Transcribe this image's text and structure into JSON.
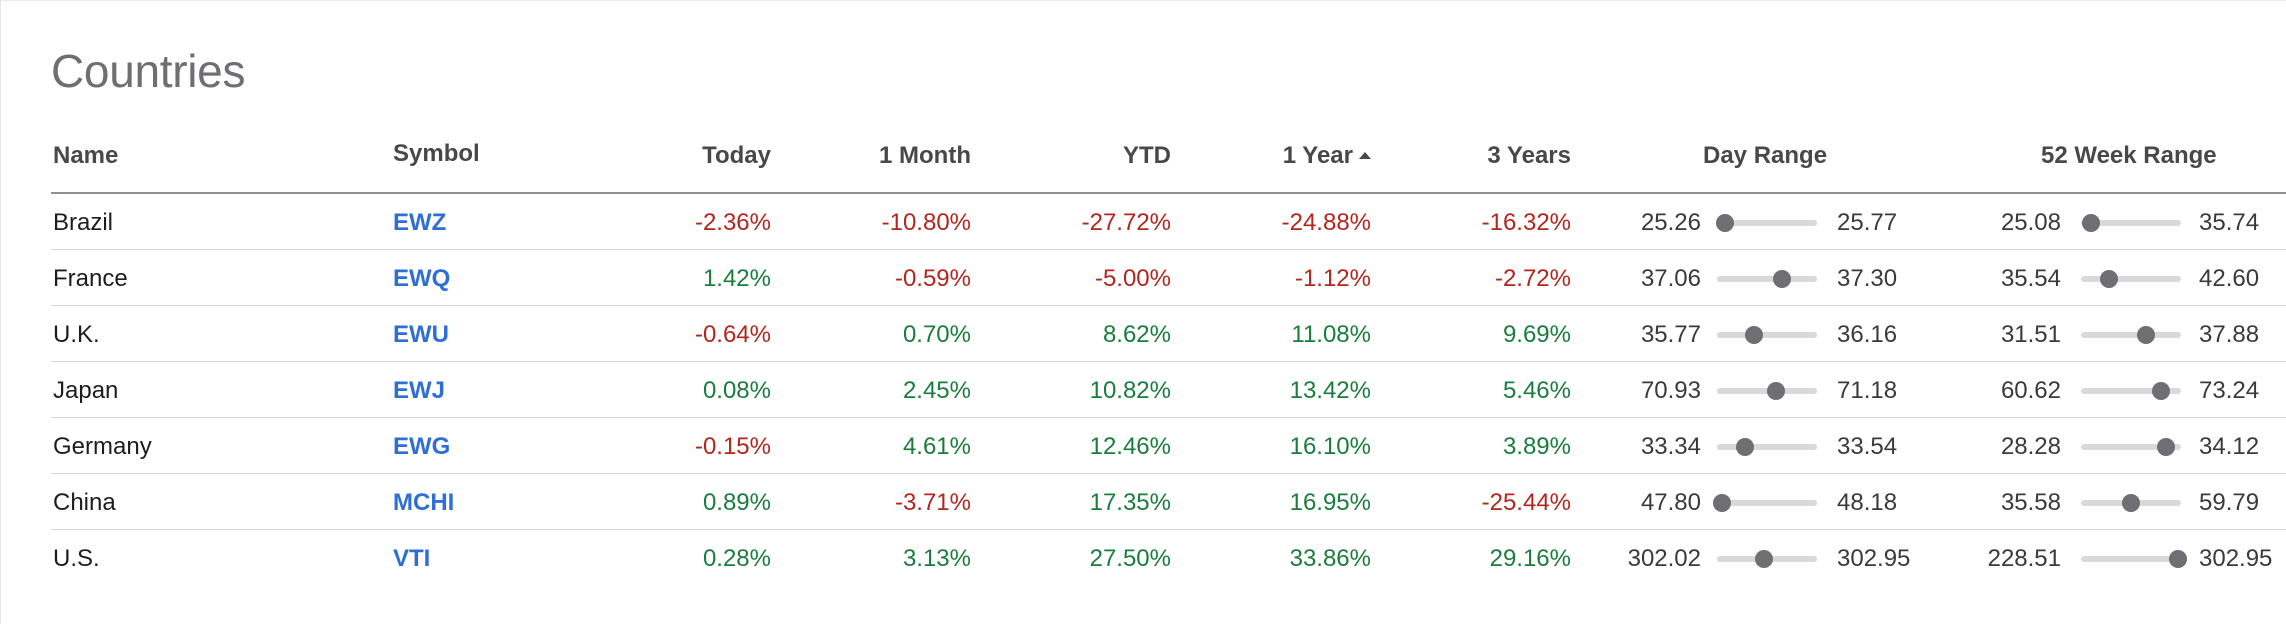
{
  "title": "Countries",
  "headers": {
    "name": "Name",
    "symbol": "Symbol",
    "today": "Today",
    "month": "1 Month",
    "ytd": "YTD",
    "year": "1 Year",
    "three_years": "3 Years",
    "day_range": "Day Range",
    "week52_range": "52 Week Range"
  },
  "sort": {
    "column": "1 Year",
    "direction": "ascending"
  },
  "colors": {
    "positive": "#1a7d3c",
    "negative": "#b3261e",
    "link": "#2f6ed6",
    "knob": "#6e6e73",
    "track": "#d9d9d9"
  },
  "rows": [
    {
      "name": "Brazil",
      "symbol": "EWZ",
      "today": "-2.36%",
      "month": "-10.80%",
      "ytd": "-27.72%",
      "year": "-24.88%",
      "three_years": "-16.32%",
      "day_low": "25.26",
      "day_high": "25.77",
      "day_pos": 0.08,
      "wk_low": "25.08",
      "wk_high": "35.74",
      "wk_pos": 0.1
    },
    {
      "name": "France",
      "symbol": "EWQ",
      "today": "1.42%",
      "month": "-0.59%",
      "ytd": "-5.00%",
      "year": "-1.12%",
      "three_years": "-2.72%",
      "day_low": "37.06",
      "day_high": "37.30",
      "day_pos": 0.65,
      "wk_low": "35.54",
      "wk_high": "42.60",
      "wk_pos": 0.28
    },
    {
      "name": "U.K.",
      "symbol": "EWU",
      "today": "-0.64%",
      "month": "0.70%",
      "ytd": "8.62%",
      "year": "11.08%",
      "three_years": "9.69%",
      "day_low": "35.77",
      "day_high": "36.16",
      "day_pos": 0.37,
      "wk_low": "31.51",
      "wk_high": "37.88",
      "wk_pos": 0.65
    },
    {
      "name": "Japan",
      "symbol": "EWJ",
      "today": "0.08%",
      "month": "2.45%",
      "ytd": "10.82%",
      "year": "13.42%",
      "three_years": "5.46%",
      "day_low": "70.93",
      "day_high": "71.18",
      "day_pos": 0.59,
      "wk_low": "60.62",
      "wk_high": "73.24",
      "wk_pos": 0.8
    },
    {
      "name": "Germany",
      "symbol": "EWG",
      "today": "-0.15%",
      "month": "4.61%",
      "ytd": "12.46%",
      "year": "16.10%",
      "three_years": "3.89%",
      "day_low": "33.34",
      "day_high": "33.54",
      "day_pos": 0.28,
      "wk_low": "28.28",
      "wk_high": "34.12",
      "wk_pos": 0.85
    },
    {
      "name": "China",
      "symbol": "MCHI",
      "today": "0.89%",
      "month": "-3.71%",
      "ytd": "17.35%",
      "year": "16.95%",
      "three_years": "-25.44%",
      "day_low": "47.80",
      "day_high": "48.18",
      "day_pos": 0.05,
      "wk_low": "35.58",
      "wk_high": "59.79",
      "wk_pos": 0.5
    },
    {
      "name": "U.S.",
      "symbol": "VTI",
      "today": "0.28%",
      "month": "3.13%",
      "ytd": "27.50%",
      "year": "33.86%",
      "three_years": "29.16%",
      "day_low": "302.02",
      "day_high": "302.95",
      "day_pos": 0.47,
      "wk_low": "228.51",
      "wk_high": "302.95",
      "wk_pos": 0.97
    }
  ]
}
